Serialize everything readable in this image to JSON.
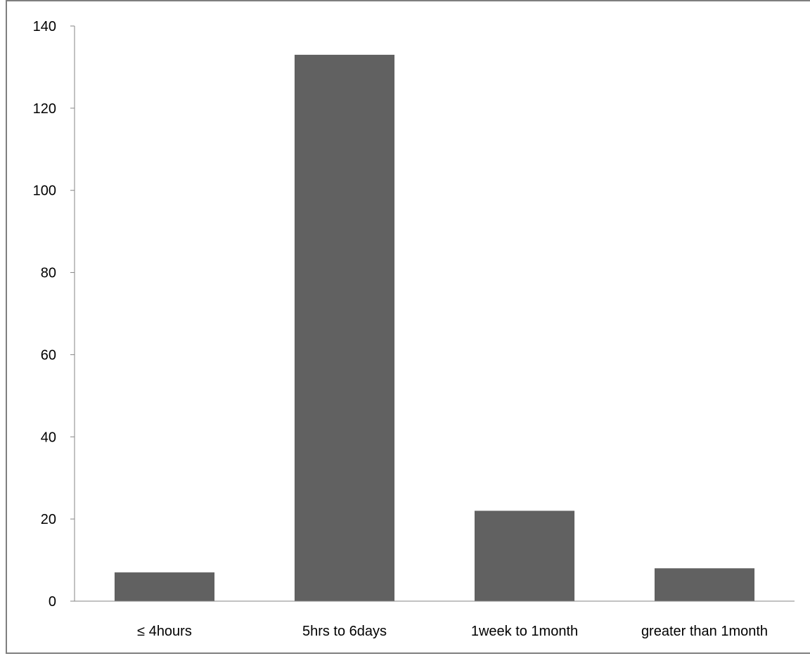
{
  "chart_data": {
    "type": "bar",
    "categories": [
      "≤ 4hours",
      "5hrs to 6days",
      "1week to 1month",
      "greater than 1month"
    ],
    "values": [
      7,
      133,
      22,
      8
    ],
    "title": "",
    "xlabel": "",
    "ylabel": "",
    "ylim": [
      0,
      140
    ],
    "yticks": [
      "0",
      "20",
      "40",
      "60",
      "80",
      "100",
      "120",
      "140"
    ],
    "grid": false,
    "legend": "none",
    "colors": {
      "bar": "#616161",
      "axis": "#868686",
      "frame": "#7f7f7f"
    }
  }
}
